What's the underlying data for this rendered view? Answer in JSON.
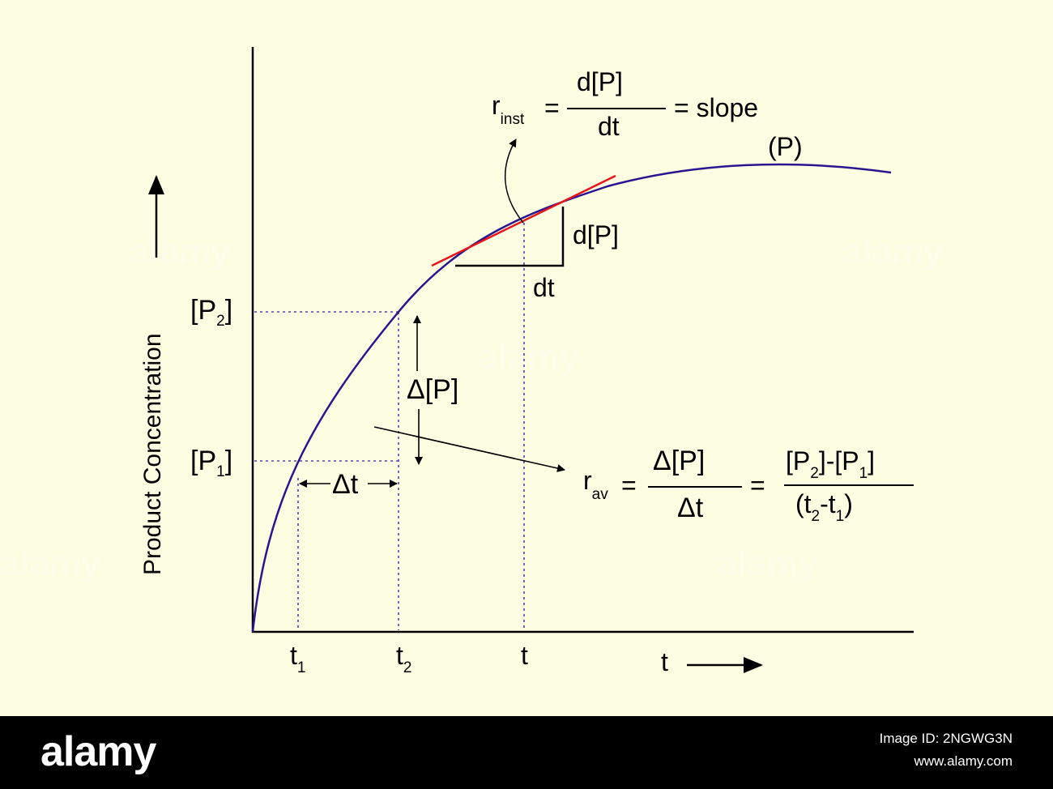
{
  "labels": {
    "y_axis": "Product Concentration",
    "p2": {
      "main": "[P",
      "sub": "2",
      "close": "]"
    },
    "p1": {
      "main": "[P",
      "sub": "1",
      "close": "]"
    },
    "t1": {
      "main": "t",
      "sub": "1"
    },
    "t2": {
      "main": "t",
      "sub": "2"
    },
    "t": "t",
    "x_axis": "t",
    "curve": "(P)",
    "dp": "d[P]",
    "dt": "dt",
    "delta_p": "Δ[P]",
    "delta_t": "Δt"
  },
  "r_inst": {
    "main": "r",
    "sub": "inst",
    "eq1": "=",
    "num": "d[P]",
    "den": "dt",
    "eq2": "= slope"
  },
  "r_av": {
    "main": "r",
    "sub": "av",
    "eq1": "=",
    "num1": "Δ[P]",
    "den1": "Δt",
    "eq2": "=",
    "num2": {
      "a": "[P",
      "a_sub": "2",
      "b": "]-[P",
      "b_sub": "1",
      "c": "]"
    },
    "den2": {
      "a": "(t",
      "a_sub": "2",
      "b": "-t",
      "b_sub": "1",
      "c": ")"
    }
  },
  "watermark": "alamy",
  "footer": {
    "logo": "alamy",
    "image_id": "Image ID: 2NGWG3N",
    "url": "www.alamy.com"
  },
  "colors": {
    "background": "#fdfde2",
    "curve": "#2a1590",
    "tangent": "#e8161b",
    "guide": "#5b3fb5",
    "footer": "#000000"
  }
}
